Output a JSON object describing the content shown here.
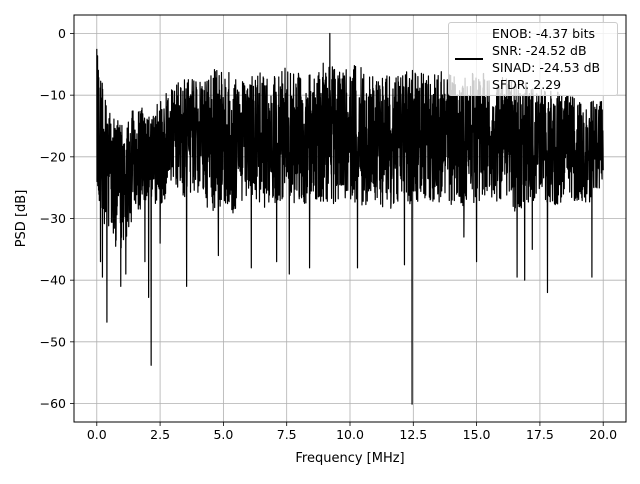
{
  "chart_data": {
    "type": "line",
    "title": "",
    "xlabel": "Frequency [MHz]",
    "ylabel": "PSD [dB]",
    "xlim": [
      -0.9,
      20.9
    ],
    "ylim": [
      -63,
      3
    ],
    "x_ticks": [
      0.0,
      2.5,
      5.0,
      7.5,
      10.0,
      12.5,
      15.0,
      17.5,
      20.0
    ],
    "x_tick_labels": [
      "0.0",
      "2.5",
      "5.0",
      "7.5",
      "10.0",
      "12.5",
      "15.0",
      "17.5",
      "20.0"
    ],
    "y_ticks": [
      0,
      -10,
      -20,
      -30,
      -40,
      -50,
      -60
    ],
    "y_tick_labels": [
      "0",
      "−10",
      "−20",
      "−30",
      "−40",
      "−50",
      "−60"
    ],
    "grid": true,
    "legend_position": "top-right",
    "legend_entries": [
      "ENOB: -4.37 bits",
      "SNR: -24.52 dB",
      "SINAD: -24.53 dB",
      "SFDR: 2.29"
    ],
    "series_color": "#000000",
    "envelope": {
      "x": [
        0.0,
        0.5,
        1.0,
        1.5,
        2.0,
        2.5,
        3.0,
        3.5,
        4.0,
        4.5,
        5.0,
        5.5,
        6.0,
        6.5,
        7.0,
        7.5,
        8.0,
        8.5,
        9.0,
        9.5,
        10.0,
        10.5,
        11.0,
        11.5,
        12.0,
        12.5,
        13.0,
        13.5,
        14.0,
        14.5,
        15.0,
        15.5,
        16.0,
        16.5,
        17.0,
        17.5,
        18.0,
        18.5,
        19.0,
        19.5,
        20.0
      ],
      "upper": [
        -3,
        -12,
        -14,
        -12,
        -12,
        -11,
        -8,
        -7,
        -7,
        -6,
        -5,
        -7,
        -7,
        -6,
        -7,
        -5,
        -6,
        -6,
        -4,
        -5,
        -5,
        -5,
        -6,
        -6,
        -5,
        -6,
        -6,
        -6,
        -6,
        -7,
        -6,
        -6,
        -7,
        -8,
        -8,
        -9,
        -9,
        -10,
        -10,
        -10,
        -11
      ],
      "lower": [
        -30,
        -32,
        -35,
        -30,
        -27,
        -28,
        -25,
        -27,
        -26,
        -29,
        -28,
        -30,
        -27,
        -29,
        -28,
        -27,
        -29,
        -27,
        -28,
        -28,
        -27,
        -28,
        -27,
        -29,
        -27,
        -28,
        -27,
        -28,
        -28,
        -29,
        -27,
        -28,
        -27,
        -29,
        -28,
        -27,
        -28,
        -28,
        -27,
        -28,
        -24
      ]
    },
    "spikes": [
      {
        "x": 0.0,
        "y": -2.5
      },
      {
        "x": 0.15,
        "y": -37
      },
      {
        "x": 0.22,
        "y": -39.5
      },
      {
        "x": 0.4,
        "y": -46.8
      },
      {
        "x": 0.75,
        "y": -34.5
      },
      {
        "x": 0.95,
        "y": -41
      },
      {
        "x": 1.15,
        "y": -39
      },
      {
        "x": 1.9,
        "y": -37
      },
      {
        "x": 2.05,
        "y": -42.8
      },
      {
        "x": 2.15,
        "y": -53.8
      },
      {
        "x": 2.5,
        "y": -34
      },
      {
        "x": 3.55,
        "y": -41
      },
      {
        "x": 4.8,
        "y": -36
      },
      {
        "x": 6.1,
        "y": -38
      },
      {
        "x": 7.1,
        "y": -37
      },
      {
        "x": 7.6,
        "y": -39
      },
      {
        "x": 8.4,
        "y": -38
      },
      {
        "x": 9.2,
        "y": 0
      },
      {
        "x": 10.3,
        "y": -38
      },
      {
        "x": 12.15,
        "y": -37.5
      },
      {
        "x": 12.45,
        "y": -60.1
      },
      {
        "x": 14.5,
        "y": -33
      },
      {
        "x": 15.0,
        "y": -37
      },
      {
        "x": 16.6,
        "y": -39.5
      },
      {
        "x": 16.9,
        "y": -40
      },
      {
        "x": 17.2,
        "y": -35
      },
      {
        "x": 17.8,
        "y": -42
      },
      {
        "x": 19.55,
        "y": -39.5
      }
    ]
  },
  "legend": {
    "line1": "ENOB: -4.37 bits",
    "line2": "SNR: -24.52 dB",
    "line3": "SINAD: -24.53 dB",
    "line4": "SFDR: 2.29"
  }
}
